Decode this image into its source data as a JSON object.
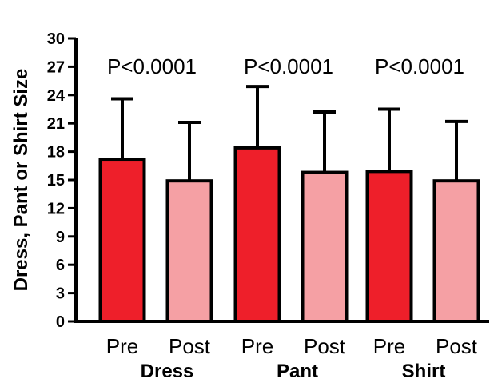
{
  "chart_data": {
    "type": "bar",
    "title": "",
    "xlabel": "",
    "ylabel": "Dress, Pant or Shirt Size",
    "ylim": [
      0,
      30
    ],
    "yticks": [
      "0",
      "3",
      "6",
      "9",
      "12",
      "15",
      "18",
      "21",
      "24",
      "27",
      "30"
    ],
    "grid": false,
    "groups": [
      {
        "name": "Dress",
        "p_value": "P<0.0001",
        "bars": [
          {
            "label": "Pre",
            "value": 17.2,
            "error": 6.4,
            "color": "#ee1f2a"
          },
          {
            "label": "Post",
            "value": 14.9,
            "error": 6.2,
            "color": "#f5a0a4"
          }
        ]
      },
      {
        "name": "Pant",
        "p_value": "P<0.0001",
        "bars": [
          {
            "label": "Pre",
            "value": 18.4,
            "error": 6.5,
            "color": "#ee1f2a"
          },
          {
            "label": "Post",
            "value": 15.8,
            "error": 6.4,
            "color": "#f5a0a4"
          }
        ]
      },
      {
        "name": "Shirt",
        "p_value": "P<0.0001",
        "bars": [
          {
            "label": "Pre",
            "value": 15.9,
            "error": 6.6,
            "color": "#ee1f2a"
          },
          {
            "label": "Post",
            "value": 14.9,
            "error": 6.3,
            "color": "#f5a0a4"
          }
        ]
      }
    ]
  }
}
